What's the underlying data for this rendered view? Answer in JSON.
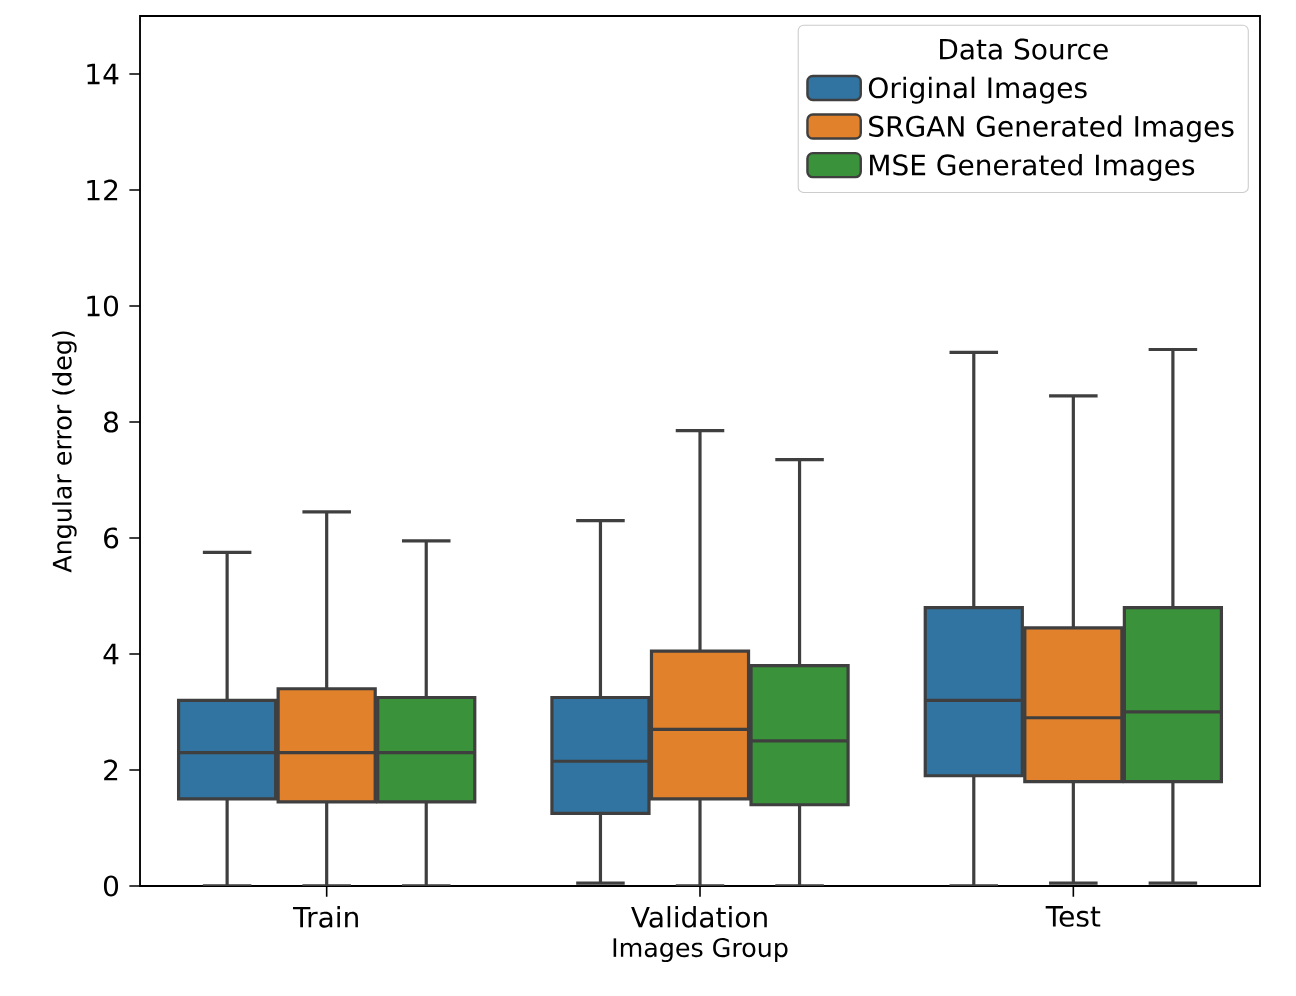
{
  "chart_data": {
    "type": "box",
    "xlabel": "Images Group",
    "ylabel": "Angular error (deg)",
    "legend_title": "Data Source",
    "legend": "top right",
    "categories": [
      "Train",
      "Validation",
      "Test"
    ],
    "ylim": [
      0,
      15
    ],
    "yticks": [
      0,
      2,
      4,
      6,
      8,
      10,
      12,
      14
    ],
    "grid": false,
    "series": [
      {
        "name": "Original Images",
        "color": "#3274a1",
        "boxes": [
          {
            "low": 0,
            "q1": 1.5,
            "median": 2.3,
            "q3": 3.2,
            "high": 5.75
          },
          {
            "low": 0.05,
            "q1": 1.25,
            "median": 2.15,
            "q3": 3.25,
            "high": 6.3
          },
          {
            "low": 0,
            "q1": 1.9,
            "median": 3.2,
            "q3": 4.8,
            "high": 9.2
          }
        ]
      },
      {
        "name": "SRGAN Generated Images",
        "color": "#e1812c",
        "boxes": [
          {
            "low": 0,
            "q1": 1.45,
            "median": 2.3,
            "q3": 3.4,
            "high": 6.45
          },
          {
            "low": 0,
            "q1": 1.5,
            "median": 2.7,
            "q3": 4.05,
            "high": 7.85
          },
          {
            "low": 0.05,
            "q1": 1.8,
            "median": 2.9,
            "q3": 4.45,
            "high": 8.45
          }
        ]
      },
      {
        "name": "MSE Generated Images",
        "color": "#3a923a",
        "boxes": [
          {
            "low": 0,
            "q1": 1.45,
            "median": 2.3,
            "q3": 3.25,
            "high": 5.95
          },
          {
            "low": 0,
            "q1": 1.4,
            "median": 2.5,
            "q3": 3.8,
            "high": 7.35
          },
          {
            "low": 0.05,
            "q1": 1.8,
            "median": 3.0,
            "q3": 4.8,
            "high": 9.25
          }
        ]
      }
    ]
  }
}
